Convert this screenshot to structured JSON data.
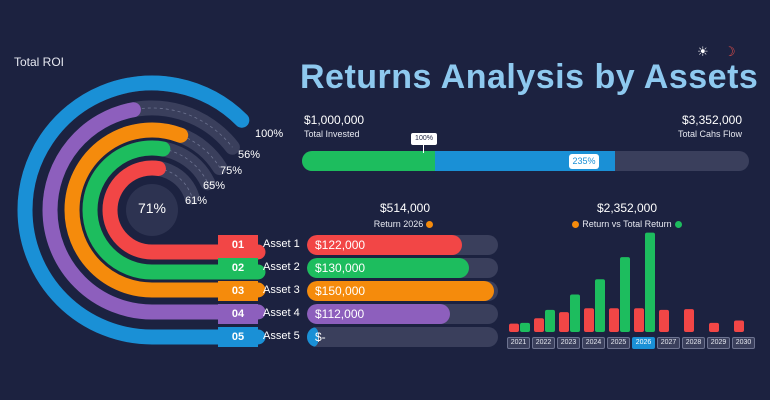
{
  "header": {
    "total_roi_label": "Total ROI",
    "title": "Returns Analysis by Assets",
    "sun_icon": "☀",
    "moon_icon": "☽"
  },
  "radial": {
    "center_label": "71%",
    "rings": [
      {
        "label": "100%",
        "color": "#1a90d6",
        "value": 100
      },
      {
        "label": "56%",
        "color": "#8d5fbd",
        "value": 56
      },
      {
        "label": "75%",
        "color": "#f58b0c",
        "value": 75
      },
      {
        "label": "65%",
        "color": "#1dbd5e",
        "value": 65
      },
      {
        "label": "61%",
        "color": "#f24646",
        "value": 61
      }
    ]
  },
  "summary": {
    "invested_value": "$1,000,000",
    "invested_label": "Total Invested",
    "cashflow_value": "$3,352,000",
    "cashflow_label": "Total Cahs Flow",
    "marker_label": "100%",
    "progress_label": "235%",
    "invested_fraction": 0.298,
    "cashflow_fraction": 0.7
  },
  "returns": {
    "value": "$514,000",
    "label": "Return 2026",
    "dot_color": "#f58b0c"
  },
  "returns_vs_total": {
    "value": "$2,352,000",
    "label": "Return vs Total Return",
    "dot_a": "#f58b0c",
    "dot_b": "#1dbd5e"
  },
  "assets": [
    {
      "num": "01",
      "name": "Asset 1",
      "amount": "$122,000",
      "color": "#f24646",
      "fraction": 0.81
    },
    {
      "num": "02",
      "name": "Asset 2",
      "amount": "$130,000",
      "color": "#1dbd5e",
      "fraction": 0.85
    },
    {
      "num": "03",
      "name": "Asset 3",
      "amount": "$150,000",
      "color": "#f58b0c",
      "fraction": 0.98
    },
    {
      "num": "04",
      "name": "Asset 4",
      "amount": "$112,000",
      "color": "#8d5fbd",
      "fraction": 0.75
    },
    {
      "num": "05",
      "name": "Asset 5",
      "amount": "$-",
      "color": "#1a90d6",
      "fraction": 0.06
    }
  ],
  "chart_data": {
    "type": "bar",
    "categories": [
      "2021",
      "2022",
      "2023",
      "2024",
      "2025",
      "2026",
      "2027",
      "2028",
      "2029",
      "2030"
    ],
    "selected": "2026",
    "series": [
      {
        "values": [
          55,
          90,
          130,
          155,
          155,
          155,
          145,
          150,
          60,
          75
        ],
        "color": "#f24646"
      },
      {
        "values": [
          60,
          145,
          245,
          345,
          490,
          650,
          0,
          0,
          0,
          0
        ],
        "color": "#1dbd5e"
      }
    ],
    "ylim": [
      0,
      700
    ]
  }
}
